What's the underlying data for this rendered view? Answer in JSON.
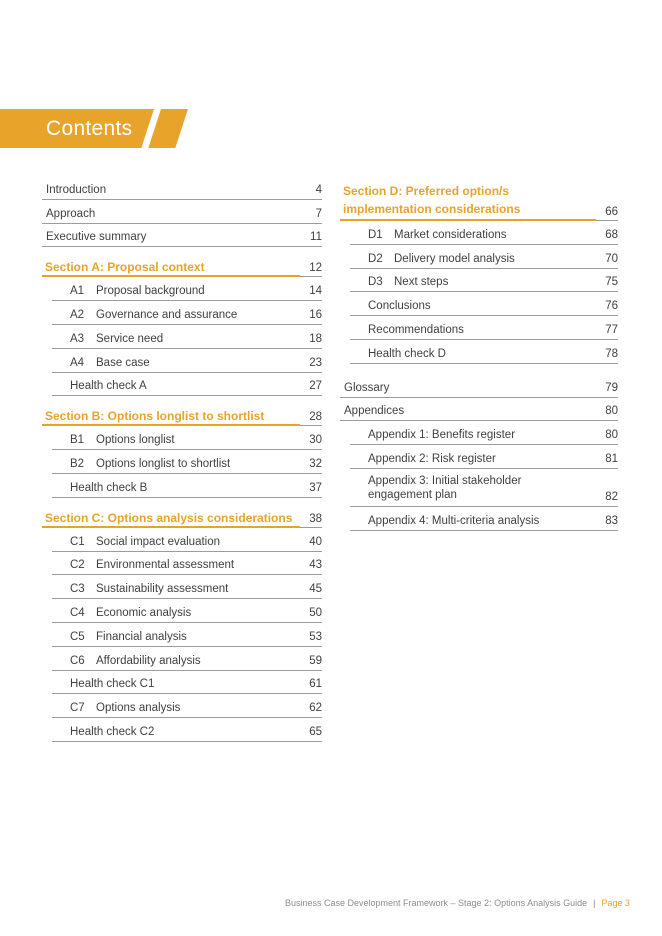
{
  "banner": {
    "title": "Contents"
  },
  "colors": {
    "accent": "#E8A32B",
    "text": "#3F3F3F",
    "line": "#9C9C9C",
    "footer_text": "#8E8E8E"
  },
  "toc": {
    "columns": [
      {
        "rows": [
          {
            "kind": "top",
            "label": "Introduction",
            "page": "4"
          },
          {
            "kind": "top",
            "label": "Approach",
            "page": "7"
          },
          {
            "kind": "top",
            "label": "Executive summary",
            "page": "11"
          },
          {
            "kind": "section",
            "label": "Section A: Proposal context",
            "page": "12"
          },
          {
            "kind": "sub",
            "code": "A1",
            "label": "Proposal background",
            "page": "14"
          },
          {
            "kind": "sub",
            "code": "A2",
            "label": "Governance and assurance",
            "page": "16"
          },
          {
            "kind": "sub",
            "code": "A3",
            "label": "Service need",
            "page": "18"
          },
          {
            "kind": "sub",
            "code": "A4",
            "label": "Base case",
            "page": "23"
          },
          {
            "kind": "sub",
            "label": "Health check A",
            "page": "27"
          },
          {
            "kind": "section",
            "label": "Section B: Options longlist to shortlist",
            "page": "28"
          },
          {
            "kind": "sub",
            "code": "B1",
            "label": "Options longlist",
            "page": "30"
          },
          {
            "kind": "sub",
            "code": "B2",
            "label": "Options longlist to shortlist",
            "page": "32"
          },
          {
            "kind": "sub",
            "label": "Health check B",
            "page": "37"
          },
          {
            "kind": "section",
            "label": "Section C: Options analysis considerations",
            "page": "38"
          },
          {
            "kind": "sub",
            "code": "C1",
            "label": "Social impact evaluation",
            "page": "40"
          },
          {
            "kind": "sub",
            "code": "C2",
            "label": "Environmental assessment",
            "page": "43"
          },
          {
            "kind": "sub",
            "code": "C3",
            "label": "Sustainability assessment",
            "page": "45"
          },
          {
            "kind": "sub",
            "code": "C4",
            "label": "Economic analysis",
            "page": "50"
          },
          {
            "kind": "sub",
            "code": "C5",
            "label": "Financial analysis",
            "page": "53"
          },
          {
            "kind": "sub",
            "code": "C6",
            "label": "Affordability analysis",
            "page": "59"
          },
          {
            "kind": "sub",
            "label": "Health check C1",
            "page": "61"
          },
          {
            "kind": "sub",
            "code": "C7",
            "label": "Options analysis",
            "page": "62"
          },
          {
            "kind": "sub",
            "label": "Health check C2",
            "page": "65"
          }
        ]
      },
      {
        "rows": [
          {
            "kind": "section",
            "lines": [
              "Section D: Preferred option/s",
              "implementation considerations"
            ],
            "page": "66"
          },
          {
            "kind": "sub",
            "code": "D1",
            "label": "Market considerations",
            "page": "68"
          },
          {
            "kind": "sub",
            "code": "D2",
            "label": "Delivery model analysis",
            "page": "70"
          },
          {
            "kind": "sub",
            "code": "D3",
            "label": "Next steps",
            "page": "75"
          },
          {
            "kind": "sub",
            "label": "Conclusions",
            "page": "76"
          },
          {
            "kind": "sub",
            "label": "Recommendations",
            "page": "77"
          },
          {
            "kind": "sub",
            "label": "Health check D",
            "page": "78"
          },
          {
            "kind": "top",
            "label": "Glossary",
            "page": "79",
            "gap_before": true
          },
          {
            "kind": "top",
            "label": "Appendices",
            "page": "80"
          },
          {
            "kind": "sub",
            "label": "Appendix 1: Benefits register",
            "page": "80"
          },
          {
            "kind": "sub",
            "label": "Appendix 2: Risk register",
            "page": "81"
          },
          {
            "kind": "sub",
            "lines": [
              "Appendix 3: Initial stakeholder",
              "engagement plan"
            ],
            "page": "82"
          },
          {
            "kind": "sub",
            "label": "Appendix 4: Multi-criteria analysis",
            "page": "83"
          }
        ]
      }
    ]
  },
  "footer": {
    "doc_title": "Business Case Development Framework – Stage 2: Options Analysis Guide",
    "separator": "|",
    "page_label": "Page 3"
  }
}
